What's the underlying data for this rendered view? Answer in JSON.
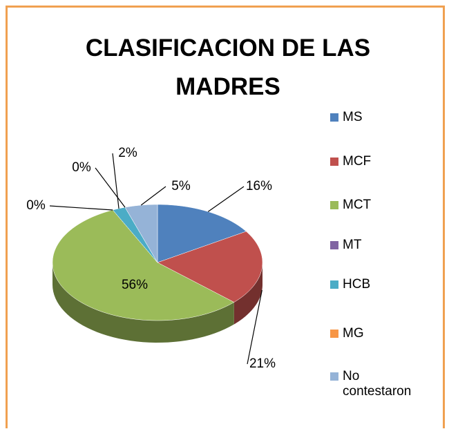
{
  "chart_data": {
    "type": "pie",
    "title": "CLASIFICACION DE LAS MADRES",
    "categories": [
      "MS",
      "MCF",
      "MCT",
      "MT",
      "HCB",
      "MG",
      "No contestaron"
    ],
    "values": [
      16,
      21,
      56,
      0,
      2,
      0,
      5
    ],
    "value_labels": [
      "16%",
      "21%",
      "56%",
      "0%",
      "2%",
      "0%",
      "5%"
    ],
    "colors": [
      "#4f81bd",
      "#c0504d",
      "#9bbb59",
      "#8064a2",
      "#4bacc6",
      "#f79646",
      "#95b3d7"
    ],
    "legend": "right"
  }
}
